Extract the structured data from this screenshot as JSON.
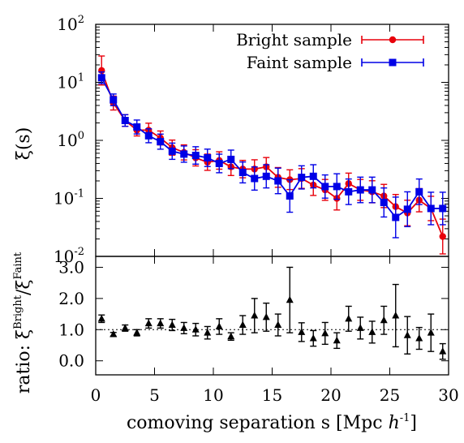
{
  "chart_data": [
    {
      "type": "line",
      "panel": "top",
      "ylabel": "ξ(s)",
      "yscale": "log",
      "ylim": [
        0.01,
        100
      ],
      "xlim": [
        0,
        30
      ],
      "yticks": [
        {
          "base": "10",
          "exp": "-2",
          "v": 0.01
        },
        {
          "base": "10",
          "exp": "-1",
          "v": 0.1
        },
        {
          "base": "10",
          "exp": "0",
          "v": 1
        },
        {
          "base": "10",
          "exp": "1",
          "v": 10
        },
        {
          "base": "10",
          "exp": "2",
          "v": 100
        }
      ],
      "legend_position": "top-right",
      "series": [
        {
          "name": "Bright sample",
          "color": "#e8000b",
          "marker": "circle",
          "x": [
            0.5,
            1.5,
            2.5,
            3.5,
            4.5,
            5.5,
            6.5,
            7.5,
            8.5,
            9.5,
            10.5,
            11.5,
            12.5,
            13.5,
            14.5,
            15.5,
            16.5,
            17.5,
            18.5,
            19.5,
            20.5,
            21.5,
            22.5,
            23.5,
            24.5,
            25.5,
            26.5,
            27.5,
            28.5,
            29.5
          ],
          "y": [
            16,
            4.4,
            2.2,
            1.5,
            1.5,
            1.1,
            0.75,
            0.62,
            0.5,
            0.42,
            0.45,
            0.35,
            0.32,
            0.32,
            0.35,
            0.23,
            0.21,
            0.22,
            0.17,
            0.14,
            0.1,
            0.18,
            0.14,
            0.13,
            0.11,
            0.072,
            0.056,
            0.093,
            0.067,
            0.022
          ],
          "err": [
            0.25,
            0.12,
            0.1,
            0.1,
            0.12,
            0.12,
            0.13,
            0.13,
            0.14,
            0.14,
            0.15,
            0.15,
            0.15,
            0.16,
            0.16,
            0.17,
            0.17,
            0.17,
            0.18,
            0.18,
            0.2,
            0.18,
            0.18,
            0.19,
            0.2,
            0.21,
            0.22,
            0.2,
            0.21,
            0.3
          ]
        },
        {
          "name": "Faint sample",
          "color": "#0000e6",
          "marker": "square",
          "x": [
            0.5,
            1.5,
            2.5,
            3.5,
            4.5,
            5.5,
            6.5,
            7.5,
            8.5,
            9.5,
            10.5,
            11.5,
            12.5,
            13.5,
            14.5,
            15.5,
            16.5,
            17.5,
            18.5,
            19.5,
            20.5,
            21.5,
            22.5,
            23.5,
            24.5,
            25.5,
            26.5,
            27.5,
            28.5,
            29.5
          ],
          "y": [
            12,
            5.0,
            2.2,
            1.7,
            1.2,
            0.95,
            0.65,
            0.58,
            0.55,
            0.5,
            0.4,
            0.47,
            0.28,
            0.22,
            0.24,
            0.2,
            0.11,
            0.23,
            0.24,
            0.16,
            0.16,
            0.13,
            0.14,
            0.14,
            0.085,
            0.047,
            0.065,
            0.13,
            0.067,
            0.067
          ],
          "err": [
            0.1,
            0.1,
            0.1,
            0.12,
            0.12,
            0.13,
            0.14,
            0.14,
            0.15,
            0.15,
            0.16,
            0.16,
            0.18,
            0.2,
            0.2,
            0.22,
            0.28,
            0.2,
            0.2,
            0.2,
            0.22,
            0.22,
            0.22,
            0.22,
            0.25,
            0.35,
            0.3,
            0.22,
            0.28,
            0.28
          ]
        }
      ]
    },
    {
      "type": "scatter",
      "panel": "bottom",
      "ylabel_prefix": "ratio: ξ",
      "ylabel_sup1": "Bright",
      "ylabel_mid": "/ξ",
      "ylabel_sup2": "Faint",
      "xlabel": "comoving separation s [Mpc h",
      "xlabel_h": "h",
      "xlabel_sup": "-1",
      "xlabel_close": "]",
      "xlabel_prefix": "comoving separation s [Mpc ",
      "xlim": [
        0,
        30
      ],
      "ylim": [
        -0.45,
        3.35
      ],
      "xticks": [
        "0",
        "5",
        "10",
        "15",
        "20",
        "25",
        "30"
      ],
      "xtick_values": [
        0,
        5,
        10,
        15,
        20,
        25,
        30
      ],
      "yticks": [
        "0.0",
        "1.0",
        "2.0",
        "3.0"
      ],
      "ytick_values": [
        0,
        1,
        2,
        3
      ],
      "reference_line": 1.0,
      "series": [
        {
          "name": "ratio",
          "color": "#000000",
          "marker": "triangle",
          "x": [
            0.5,
            1.5,
            2.5,
            3.5,
            4.5,
            5.5,
            6.5,
            7.5,
            8.5,
            9.5,
            10.5,
            11.5,
            12.5,
            13.5,
            14.5,
            15.5,
            16.5,
            17.5,
            18.5,
            19.5,
            20.5,
            21.5,
            22.5,
            23.5,
            24.5,
            25.5,
            26.5,
            27.5,
            28.5,
            29.5
          ],
          "y": [
            1.35,
            0.85,
            1.05,
            0.9,
            1.2,
            1.2,
            1.15,
            1.05,
            1.0,
            0.9,
            1.1,
            0.78,
            1.15,
            1.45,
            1.4,
            1.15,
            1.95,
            0.92,
            0.72,
            0.88,
            0.65,
            1.35,
            1.05,
            0.92,
            1.3,
            1.45,
            0.82,
            0.72,
            0.9,
            0.3
          ],
          "err": [
            0.12,
            0.06,
            0.1,
            0.1,
            0.15,
            0.15,
            0.18,
            0.18,
            0.2,
            0.2,
            0.25,
            0.12,
            0.3,
            0.55,
            0.45,
            0.35,
            1.05,
            0.3,
            0.25,
            0.35,
            0.25,
            0.4,
            0.35,
            0.35,
            0.45,
            1.0,
            0.6,
            0.35,
            0.6,
            0.25
          ]
        }
      ]
    }
  ]
}
